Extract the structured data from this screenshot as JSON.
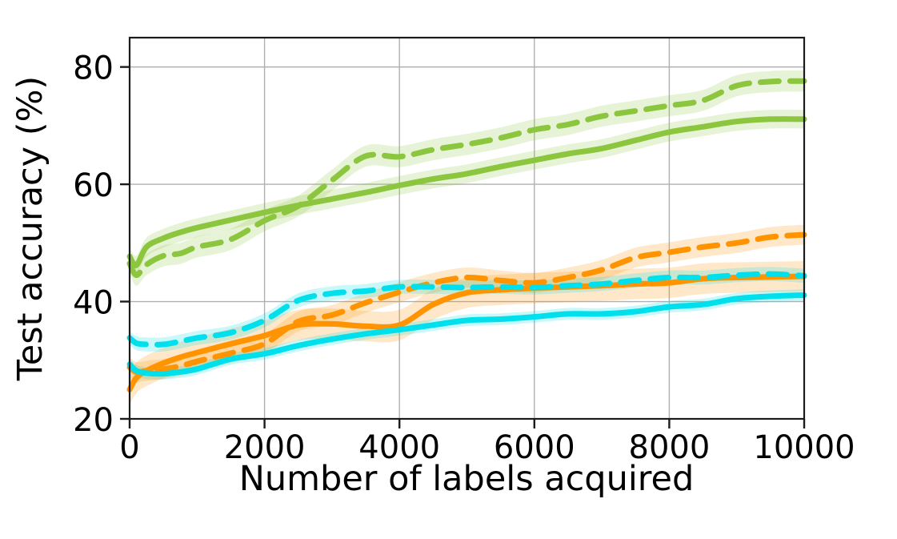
{
  "chart_data": {
    "type": "line",
    "title": "",
    "xlabel": "Number of labels acquired",
    "ylabel": "Test accuracy (%)",
    "xlim": [
      0,
      10000
    ],
    "ylim": [
      20,
      85
    ],
    "xticks": [
      0,
      2000,
      4000,
      6000,
      8000,
      10000
    ],
    "yticks": [
      20,
      40,
      60,
      80
    ],
    "grid": true,
    "legend": "none",
    "grid_color": "#b0b0b0",
    "spine_color": "#1c1c1c",
    "x": [
      0,
      100,
      250,
      500,
      750,
      1000,
      1500,
      2000,
      2500,
      3000,
      3500,
      4000,
      4500,
      5000,
      5500,
      6000,
      6500,
      7000,
      7500,
      8000,
      8500,
      9000,
      9500,
      10000
    ],
    "series": [
      {
        "name": "green-solid",
        "color": "#8CC63F",
        "line_style": "solid",
        "band_halfwidth": 1.6,
        "values": [
          47.7,
          46.2,
          49.3,
          50.8,
          51.8,
          52.6,
          53.9,
          55.2,
          56.4,
          57.5,
          58.6,
          59.8,
          60.9,
          61.8,
          63.0,
          64.1,
          65.2,
          66.1,
          67.5,
          68.9,
          69.8,
          70.7,
          71.1,
          71.1
        ]
      },
      {
        "name": "green-dashed",
        "color": "#8CC63F",
        "line_style": "dashed",
        "band_halfwidth": 1.8,
        "values": [
          46.5,
          44.5,
          46.3,
          47.8,
          48.2,
          49.3,
          50.6,
          53.8,
          56.3,
          60.7,
          64.8,
          64.7,
          65.9,
          66.8,
          67.9,
          69.3,
          70.2,
          71.6,
          72.5,
          73.4,
          74.3,
          76.8,
          77.5,
          77.6
        ]
      },
      {
        "name": "orange-solid",
        "color": "#FF9300",
        "line_style": "solid",
        "band_halfwidth": 2.6,
        "values": [
          25.0,
          27.0,
          28.2,
          29.5,
          30.5,
          31.3,
          32.8,
          34.2,
          36.0,
          36.2,
          35.8,
          36.0,
          39.5,
          41.5,
          42.0,
          42.3,
          42.5,
          42.7,
          43.0,
          43.2,
          43.9,
          44.1,
          44.2,
          44.3
        ]
      },
      {
        "name": "orange-dashed",
        "color": "#FF9300",
        "line_style": "dashed",
        "band_halfwidth": 1.7,
        "values": [
          28.8,
          28.0,
          28.2,
          28.5,
          29.0,
          29.8,
          31.2,
          32.8,
          36.6,
          37.7,
          39.8,
          41.6,
          43.2,
          44.1,
          43.6,
          43.2,
          44.1,
          45.4,
          47.5,
          48.4,
          49.3,
          50.0,
          51.0,
          51.4
        ]
      },
      {
        "name": "cyan-solid",
        "color": "#00DFEC",
        "line_style": "solid",
        "band_halfwidth": 1.0,
        "values": [
          29.3,
          28.2,
          27.8,
          27.7,
          28.0,
          28.5,
          30.2,
          31.1,
          32.5,
          33.6,
          34.5,
          35.2,
          36.0,
          36.8,
          37.0,
          37.4,
          37.9,
          37.9,
          38.3,
          39.1,
          39.5,
          40.5,
          40.9,
          41.1
        ]
      },
      {
        "name": "cyan-dashed",
        "color": "#00DFEC",
        "line_style": "dashed",
        "band_halfwidth": 1.2,
        "values": [
          33.8,
          32.9,
          32.7,
          32.7,
          33.2,
          33.8,
          34.7,
          36.8,
          40.2,
          41.4,
          41.8,
          42.5,
          42.5,
          42.4,
          42.5,
          42.4,
          42.7,
          43.0,
          43.6,
          44.1,
          44.1,
          44.5,
          44.7,
          44.4
        ]
      }
    ]
  }
}
